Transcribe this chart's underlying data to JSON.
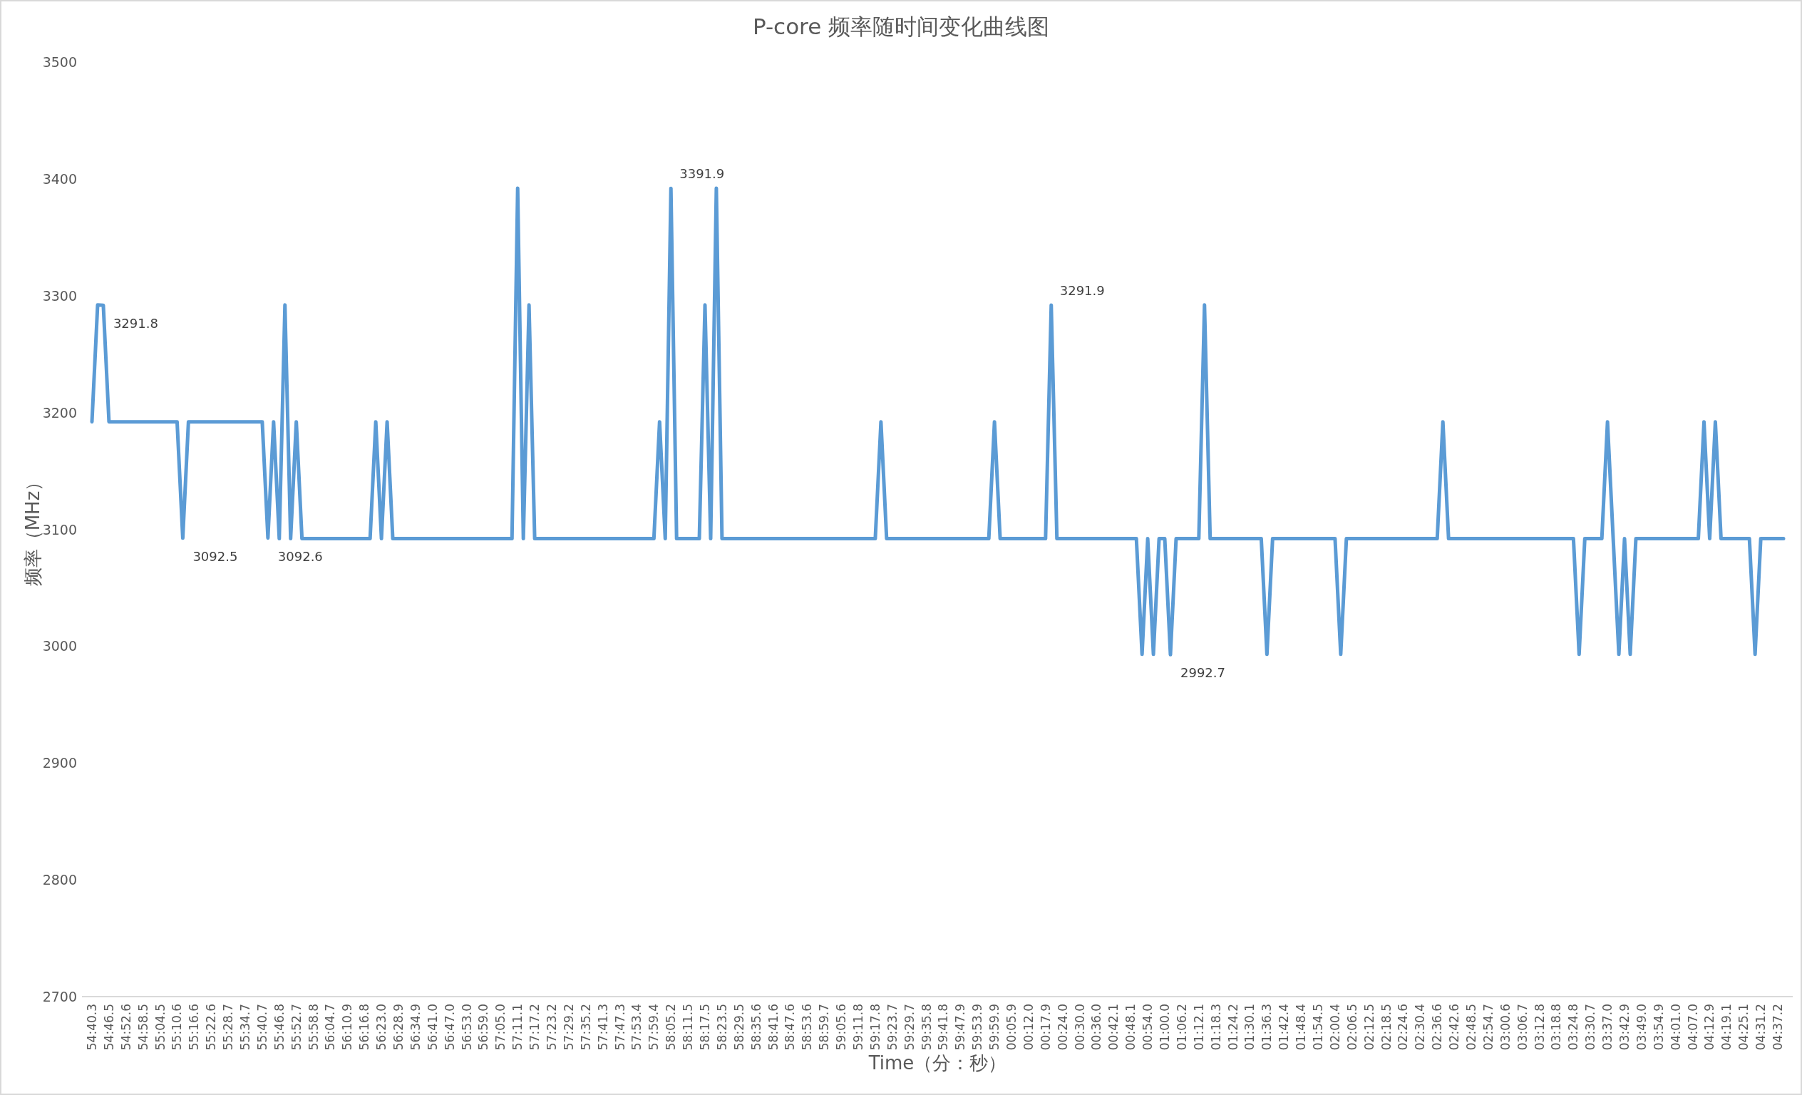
{
  "chart_data": {
    "type": "line",
    "title": "P-core 频率随时间变化曲线图",
    "xlabel": "Time（分：秒）",
    "ylabel": "频率（MHz）",
    "color": "#5b9bd5",
    "ylim": [
      2700,
      3500
    ],
    "yticks": [
      2700,
      2800,
      2900,
      3000,
      3100,
      3200,
      3300,
      3400,
      3500
    ],
    "categories": [
      "54:40.3",
      null,
      null,
      "54:46.5",
      null,
      null,
      "54:52.6",
      null,
      null,
      "54:58.5",
      null,
      null,
      "55:04.5",
      null,
      null,
      "55:10.6",
      null,
      null,
      "55:16.6",
      null,
      null,
      "55:22.6",
      null,
      null,
      "55:28.7",
      null,
      null,
      "55:34.7",
      null,
      null,
      "55:40.7",
      null,
      null,
      "55:46.8",
      null,
      null,
      "55:52.7",
      null,
      null,
      "55:58.8",
      null,
      null,
      "56:04.7",
      null,
      null,
      "56:10.9",
      null,
      null,
      "56:16.8",
      null,
      null,
      "56:23.0",
      null,
      null,
      "56:28.9",
      null,
      null,
      "56:34.9",
      null,
      null,
      "56:41.0",
      null,
      null,
      "56:47.0",
      null,
      null,
      "56:53.0",
      null,
      null,
      "56:59.0",
      null,
      null,
      "57:05.0",
      null,
      null,
      "57:11.1",
      null,
      null,
      "57:17.2",
      null,
      null,
      "57:23.2",
      null,
      null,
      "57:29.2",
      null,
      null,
      "57:35.2",
      null,
      null,
      "57:41.3",
      null,
      null,
      "57:47.3",
      null,
      null,
      "57:53.4",
      null,
      null,
      "57:59.4",
      null,
      null,
      "58:05.2",
      null,
      null,
      "58:11.5",
      null,
      null,
      "58:17.5",
      null,
      null,
      "58:23.5",
      null,
      null,
      "58:29.5",
      null,
      null,
      "58:35.6",
      null,
      null,
      "58:41.6",
      null,
      null,
      "58:47.6",
      null,
      null,
      "58:53.6",
      null,
      null,
      "58:59.7",
      null,
      null,
      "59:05.6",
      null,
      null,
      "59:11.8",
      null,
      null,
      "59:17.8",
      null,
      null,
      "59:23.7",
      null,
      null,
      "59:29.7",
      null,
      null,
      "59:35.8",
      null,
      null,
      "59:41.8",
      null,
      null,
      "59:47.9",
      null,
      null,
      "59:53.9",
      null,
      null,
      "59:59.9",
      null,
      null,
      "00:05.9",
      null,
      null,
      "00:12.0",
      null,
      null,
      "00:17.9",
      null,
      null,
      "00:24.0",
      null,
      null,
      "00:30.0",
      null,
      null,
      "00:36.0",
      null,
      null,
      "00:42.1",
      null,
      null,
      "00:48.1",
      null,
      null,
      "00:54.0",
      null,
      null,
      "01:00.0",
      null,
      null,
      "01:06.2",
      null,
      null,
      "01:12.1",
      null,
      null,
      "01:18.3",
      null,
      null,
      "01:24.2",
      null,
      null,
      "01:30.1",
      null,
      null,
      "01:36.3",
      null,
      null,
      "01:42.4",
      null,
      null,
      "01:48.4",
      null,
      null,
      "01:54.5",
      null,
      null,
      "02:00.4",
      null,
      null,
      "02:06.5",
      null,
      null,
      "02:12.5",
      null,
      null,
      "02:18.5",
      null,
      null,
      "02:24.6",
      null,
      null,
      "02:30.4",
      null,
      null,
      "02:36.6",
      null,
      null,
      "02:42.6",
      null,
      null,
      "02:48.5",
      null,
      null,
      "02:54.7",
      null,
      null,
      "03:00.6",
      null,
      null,
      "03:06.7",
      null,
      null,
      "03:12.8",
      null,
      null,
      "03:18.8",
      null,
      null,
      "03:24.8",
      null,
      null,
      "03:30.7",
      null,
      null,
      "03:37.0",
      null,
      null,
      "03:42.9",
      null,
      null,
      "03:49.0",
      null,
      null,
      "03:54.9",
      null,
      null,
      "04:01.0",
      null,
      null,
      "04:07.0",
      null,
      null,
      "04:12.9",
      null,
      null,
      "04:19.1",
      null,
      null,
      "04:25.1",
      null,
      null,
      "04:31.2",
      null,
      null,
      "04:37.2",
      null
    ],
    "values": [
      3192,
      3292,
      3291.8,
      3192,
      3192,
      3192,
      3192,
      3192,
      3192,
      3192,
      3192,
      3192,
      3192,
      3192,
      3192,
      3192,
      3092.5,
      3192,
      3192,
      3192,
      3192,
      3192,
      3192,
      3192,
      3192,
      3192,
      3192,
      3192,
      3192,
      3192,
      3192,
      3092.6,
      3192,
      3092,
      3292,
      3092,
      3192,
      3092,
      3092,
      3092,
      3092,
      3092,
      3092,
      3092,
      3092,
      3092,
      3092,
      3092,
      3092,
      3092,
      3192,
      3092,
      3192,
      3092,
      3092,
      3092,
      3092,
      3092,
      3092,
      3092,
      3092,
      3092,
      3092,
      3092,
      3092,
      3092,
      3092,
      3092,
      3092,
      3092,
      3092,
      3092,
      3092,
      3092,
      3092,
      3392,
      3092,
      3292,
      3092,
      3092,
      3092,
      3092,
      3092,
      3092,
      3092,
      3092,
      3092,
      3092,
      3092,
      3092,
      3092,
      3092,
      3092,
      3092,
      3092,
      3092,
      3092,
      3092,
      3092,
      3092,
      3192,
      3092,
      3391.9,
      3092,
      3092,
      3092,
      3092,
      3092,
      3292,
      3092,
      3392,
      3092,
      3092,
      3092,
      3092,
      3092,
      3092,
      3092,
      3092,
      3092,
      3092,
      3092,
      3092,
      3092,
      3092,
      3092,
      3092,
      3092,
      3092,
      3092,
      3092,
      3092,
      3092,
      3092,
      3092,
      3092,
      3092,
      3092,
      3092,
      3192,
      3092,
      3092,
      3092,
      3092,
      3092,
      3092,
      3092,
      3092,
      3092,
      3092,
      3092,
      3092,
      3092,
      3092,
      3092,
      3092,
      3092,
      3092,
      3092,
      3192,
      3092,
      3092,
      3092,
      3092,
      3092,
      3092,
      3092,
      3092,
      3092,
      3291.9,
      3092,
      3092,
      3092,
      3092,
      3092,
      3092,
      3092,
      3092,
      3092,
      3092,
      3092,
      3092,
      3092,
      3092,
      3092,
      2993,
      3092,
      2993,
      3092,
      3092,
      2992.7,
      3092,
      3092,
      3092,
      3092,
      3092,
      3292,
      3092,
      3092,
      3092,
      3092,
      3092,
      3092,
      3092,
      3092,
      3092,
      3092,
      2993,
      3092,
      3092,
      3092,
      3092,
      3092,
      3092,
      3092,
      3092,
      3092,
      3092,
      3092,
      3092,
      2993,
      3092,
      3092,
      3092,
      3092,
      3092,
      3092,
      3092,
      3092,
      3092,
      3092,
      3092,
      3092,
      3092,
      3092,
      3092,
      3092,
      3092,
      3192,
      3092,
      3092,
      3092,
      3092,
      3092,
      3092,
      3092,
      3092,
      3092,
      3092,
      3092,
      3092,
      3092,
      3092,
      3092,
      3092,
      3092,
      3092,
      3092,
      3092,
      3092,
      3092,
      3092,
      2993,
      3092,
      3092,
      3092,
      3092,
      3192,
      3092,
      2993,
      3092,
      2993,
      3092,
      3092,
      3092,
      3092,
      3092,
      3092,
      3092,
      3092,
      3092,
      3092,
      3092,
      3092,
      3192,
      3092,
      3192,
      3092,
      3092,
      3092,
      3092,
      3092,
      3092,
      2993,
      3092,
      3092,
      3092,
      3092,
      3092
    ],
    "value_labels": [
      null,
      null,
      "3291.8",
      null,
      null,
      null,
      null,
      null,
      null,
      null,
      null,
      null,
      null,
      null,
      null,
      null,
      "3092.5",
      null,
      null,
      null,
      null,
      null,
      null,
      null,
      null,
      null,
      null,
      null,
      null,
      null,
      null,
      "3092.6",
      null,
      null,
      null,
      null,
      null,
      null,
      null,
      null,
      null,
      null,
      null,
      null,
      null,
      null,
      null,
      null,
      null,
      null,
      null,
      null,
      null,
      null,
      null,
      null,
      null,
      null,
      null,
      null,
      null,
      null,
      null,
      null,
      null,
      null,
      null,
      null,
      null,
      null,
      null,
      null,
      null,
      null,
      null,
      null,
      null,
      null,
      null,
      null,
      null,
      null,
      null,
      null,
      null,
      null,
      null,
      null,
      null,
      null,
      null,
      null,
      null,
      null,
      null,
      null,
      null,
      null,
      null,
      null,
      null,
      null,
      "3391.9",
      null,
      null,
      null,
      null,
      null,
      null,
      null,
      null,
      null,
      null,
      null,
      null,
      null,
      null,
      null,
      null,
      null,
      null,
      null,
      null,
      null,
      null,
      null,
      null,
      null,
      null,
      null,
      null,
      null,
      null,
      null,
      null,
      null,
      null,
      null,
      null,
      null,
      null,
      null,
      null,
      null,
      null,
      null,
      null,
      null,
      null,
      null,
      null,
      null,
      null,
      null,
      null,
      null,
      null,
      null,
      null,
      null,
      null,
      null,
      null,
      null,
      null,
      null,
      null,
      null,
      null,
      "3291.9",
      null,
      null,
      null,
      null,
      null,
      null,
      null,
      null,
      null,
      null,
      null,
      null,
      null,
      null,
      null,
      null,
      null,
      null,
      null,
      null,
      "2992.7",
      null,
      null,
      null,
      null,
      null,
      null,
      null,
      null,
      null,
      null,
      null,
      null,
      null,
      null,
      null,
      null,
      null,
      null,
      null,
      null,
      null,
      null,
      null,
      null,
      null,
      null,
      null,
      null,
      null,
      null,
      null,
      null,
      null,
      null,
      null,
      null,
      null,
      null,
      null,
      null,
      null,
      null,
      null,
      null,
      null,
      null,
      null,
      null,
      null,
      null,
      null,
      null,
      null,
      null,
      null,
      null,
      null,
      null,
      null,
      null,
      null,
      null,
      null,
      null,
      null,
      null,
      null,
      null,
      null,
      null,
      null,
      null,
      null,
      null,
      null,
      null,
      null,
      null,
      null,
      null,
      null,
      null,
      null,
      null,
      null,
      null,
      null,
      null,
      null,
      null,
      null,
      null,
      null,
      null,
      null,
      null,
      null,
      null,
      null,
      null,
      null,
      null,
      null,
      null,
      null,
      null,
      null,
      null
    ]
  }
}
